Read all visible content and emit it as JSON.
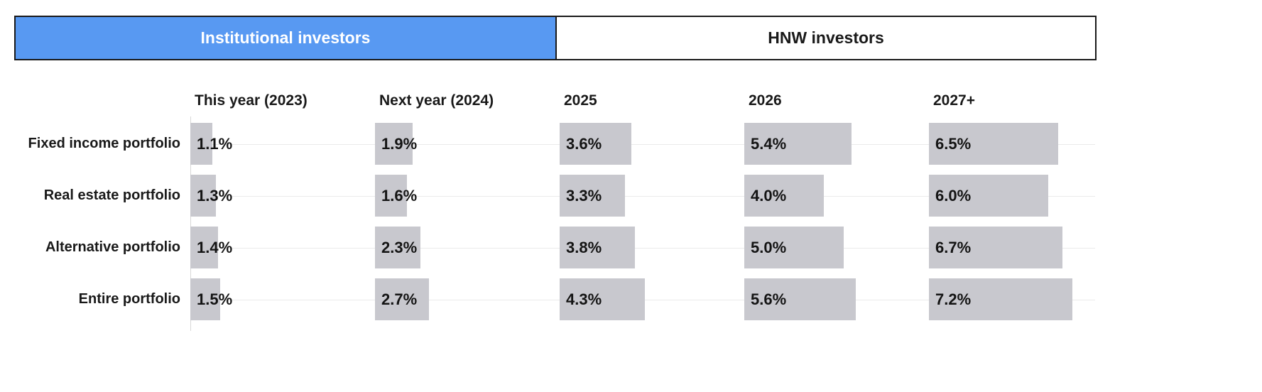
{
  "tabs": [
    {
      "label": "Institutional investors",
      "active": true
    },
    {
      "label": "HNW investors",
      "active": false
    }
  ],
  "colors": {
    "tab_active_bg": "#5899f2",
    "tab_active_text": "#ffffff",
    "bar": "#c8c8ce",
    "text": "#191919"
  },
  "chart_data": {
    "type": "bar",
    "orientation": "horizontal",
    "active_tab": "Institutional investors",
    "columns": [
      "This year (2023)",
      "Next year (2024)",
      "2025",
      "2026",
      "2027+"
    ],
    "rows": [
      "Fixed income portfolio",
      "Real estate portfolio",
      "Alternative portfolio",
      "Entire portfolio"
    ],
    "series": [
      {
        "name": "Fixed income portfolio",
        "values": [
          1.1,
          1.9,
          3.6,
          5.4,
          6.5
        ]
      },
      {
        "name": "Real estate portfolio",
        "values": [
          1.3,
          1.6,
          3.3,
          4.0,
          6.0
        ]
      },
      {
        "name": "Alternative portfolio",
        "values": [
          1.4,
          2.3,
          3.8,
          5.0,
          6.7
        ]
      },
      {
        "name": "Entire portfolio",
        "values": [
          1.5,
          2.7,
          4.3,
          5.6,
          7.2
        ]
      }
    ],
    "value_format": "percent",
    "value_suffix": "%",
    "xlim": [
      0,
      9.3
    ],
    "grid": true,
    "legend": false,
    "title": "",
    "xlabel": "",
    "ylabel": ""
  }
}
